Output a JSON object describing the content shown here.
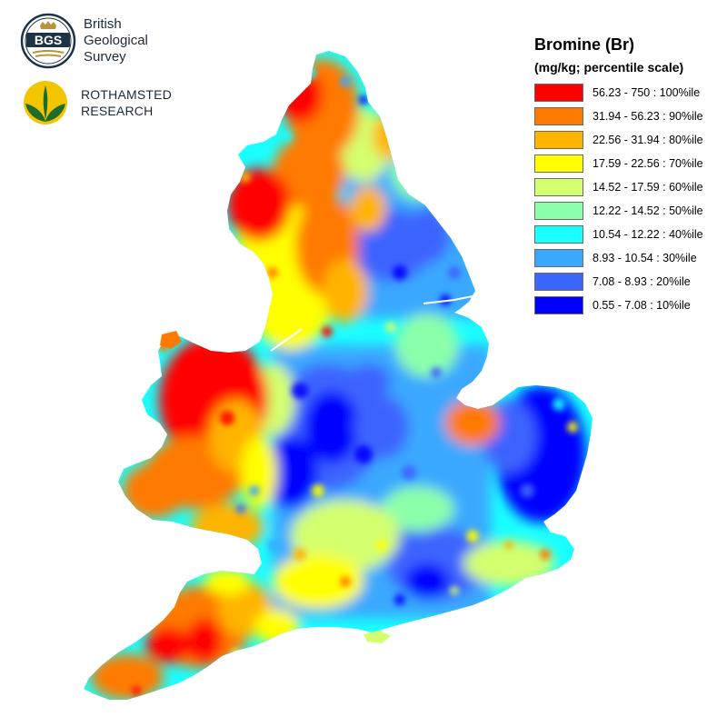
{
  "logos": {
    "bgs": {
      "seal_text": "BGS",
      "lines": [
        "British",
        "Geological",
        "Survey"
      ],
      "colors": {
        "navy": "#1f3346",
        "gold": "#b8953c"
      }
    },
    "rothamsted": {
      "lines": [
        "ROTHAMSTED",
        "RESEARCH"
      ],
      "colors": {
        "green": "#1e6b2a",
        "yellow": "#f2c500"
      }
    }
  },
  "legend": {
    "title": "Bromine (Br)",
    "subtitle": "(mg/kg; percentile scale)",
    "items": [
      {
        "label": "56.23 - 750 : 100%ile",
        "color": "#ff0000"
      },
      {
        "label": "31.94 - 56.23 : 90%ile",
        "color": "#ff7a00"
      },
      {
        "label": "22.56 - 31.94 : 80%ile",
        "color": "#ffb400"
      },
      {
        "label": "17.59 - 22.56 : 70%ile",
        "color": "#ffff00"
      },
      {
        "label": "14.52 - 17.59 : 60%ile",
        "color": "#d4ff6e"
      },
      {
        "label": "12.22 - 14.52 : 50%ile",
        "color": "#8cffaa"
      },
      {
        "label": "10.54 - 12.22 : 40%ile",
        "color": "#19ffff"
      },
      {
        "label": "8.93 - 10.54 : 30%ile",
        "color": "#3aa8ff"
      },
      {
        "label": "7.08 - 8.93 : 20%ile",
        "color": "#3c64ff"
      },
      {
        "label": "0.55 - 7.08 : 10%ile",
        "color": "#0000ff"
      }
    ]
  },
  "map": {
    "subject": "Bromine concentration in topsoil, England and Wales",
    "regions": [
      {
        "name": "North England & Lake District",
        "level": "high"
      },
      {
        "name": "Pennines",
        "level": "high"
      },
      {
        "name": "Wales",
        "level": "very-high"
      },
      {
        "name": "Cornwall & Devon",
        "level": "high"
      },
      {
        "name": "Midlands",
        "level": "low"
      },
      {
        "name": "East Anglia",
        "level": "very-low"
      },
      {
        "name": "South East",
        "level": "low"
      }
    ]
  }
}
